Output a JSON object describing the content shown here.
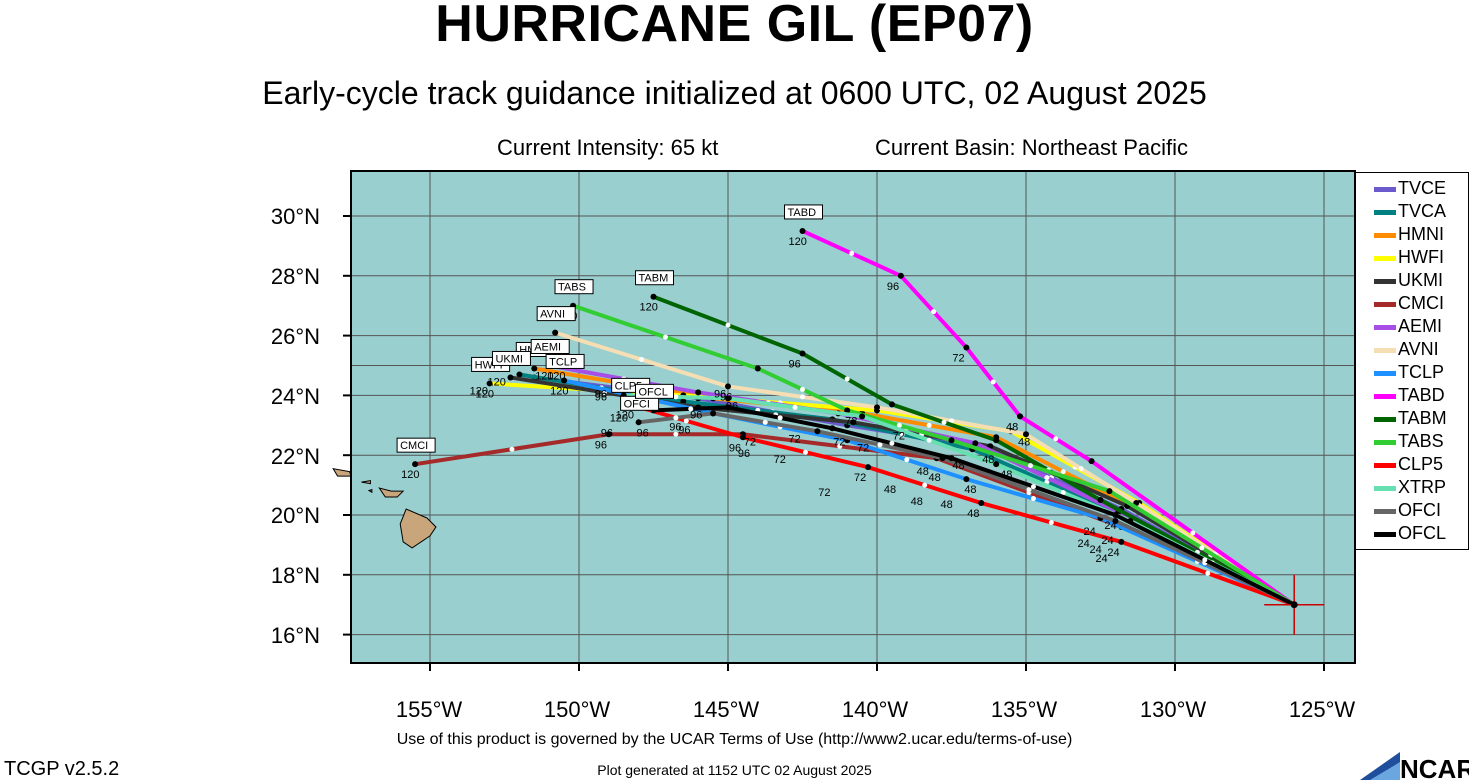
{
  "title": "HURRICANE GIL (EP07)",
  "subtitle": "Early-cycle track guidance initialized at 0600 UTC, 02 August 2025",
  "current_intensity": "Current Intensity: 65 kt",
  "current_basin": "Current Basin: Northeast Pacific",
  "footer": {
    "terms": "Use of this product is governed by the UCAR Terms of Use (http://www2.ucar.edu/terms-of-use)",
    "generated": "Plot generated at 1152 UTC   02 August 2025",
    "version": "TCGP v2.5.2",
    "logo_text": "NCAR"
  },
  "axes": {
    "lat_labels": [
      "30°N",
      "28°N",
      "26°N",
      "24°N",
      "22°N",
      "20°N",
      "18°N",
      "16°N"
    ],
    "lon_labels": [
      "155°W",
      "150°W",
      "145°W",
      "140°W",
      "135°W",
      "130°W",
      "125°W"
    ]
  },
  "colors": {
    "ocean": "#99cfcf",
    "land": "#c8a57a",
    "storm_marker": "#cc0000"
  },
  "storm_position": {
    "lat": 17.0,
    "lon": -126.0
  },
  "models": [
    {
      "id": "TVCE",
      "color": "#6a5acd",
      "points": [
        [
          -126,
          17.0
        ],
        [
          -131.8,
          20.2
        ],
        [
          -136.5,
          22.3
        ],
        [
          -141.0,
          23.0
        ],
        [
          -146.0,
          23.9
        ],
        [
          -151.5,
          24.6
        ]
      ],
      "end_label": "",
      "hour_labels": []
    },
    {
      "id": "TVCA",
      "color": "#008080",
      "points": [
        [
          -126,
          17.0
        ],
        [
          -131.8,
          20.0
        ],
        [
          -136.8,
          22.2
        ],
        [
          -141.5,
          23.2
        ],
        [
          -146.5,
          23.8
        ],
        [
          -152.0,
          24.7
        ]
      ],
      "end_label": "",
      "hour_labels": []
    },
    {
      "id": "HMNI",
      "color": "#ff8c00",
      "points": [
        [
          -126,
          17.0
        ],
        [
          -131.5,
          20.3
        ],
        [
          -136.0,
          22.6
        ],
        [
          -140.5,
          23.4
        ],
        [
          -145.5,
          23.9
        ],
        [
          -151.5,
          24.9
        ]
      ],
      "end_label": "HMNI",
      "hour_labels": []
    },
    {
      "id": "HWFI",
      "color": "#ffff00",
      "points": [
        [
          -126,
          17.0
        ],
        [
          -131.2,
          20.4
        ],
        [
          -135.5,
          22.8
        ],
        [
          -140.0,
          23.5
        ],
        [
          -146.5,
          24.0
        ],
        [
          -153.0,
          24.4
        ]
      ],
      "end_label": "HWFI",
      "hour_labels": [
        [
          "120",
          -153.0,
          24.4
        ]
      ]
    },
    {
      "id": "UKMI",
      "color": "#333333",
      "points": [
        [
          -126,
          17.0
        ],
        [
          -131.6,
          20.3
        ],
        [
          -136.2,
          22.3
        ],
        [
          -140.8,
          23.1
        ],
        [
          -146.0,
          23.6
        ],
        [
          -152.3,
          24.6
        ]
      ],
      "end_label": "UKMI",
      "hour_labels": []
    },
    {
      "id": "CMCI",
      "color": "#a52a2a",
      "points": [
        [
          -126,
          17.0
        ],
        [
          -131.8,
          19.6
        ],
        [
          -138.0,
          21.9
        ],
        [
          -144.5,
          22.7
        ],
        [
          -149.0,
          22.7
        ],
        [
          -155.5,
          21.7
        ]
      ],
      "end_label": "CMCI",
      "hour_labels": [
        [
          "120",
          -155.5,
          21.7
        ],
        [
          "96",
          -149.0,
          22.7
        ]
      ]
    },
    {
      "id": "AEMI",
      "color": "#a64ee6",
      "points": [
        [
          -126,
          17.0
        ],
        [
          -131.9,
          20.1
        ],
        [
          -136.7,
          22.4
        ],
        [
          -141.3,
          23.4
        ],
        [
          -146.0,
          24.1
        ],
        [
          -151.0,
          25.0
        ]
      ],
      "end_label": "AEMI",
      "hour_labels": [
        [
          "120",
          -151.0,
          25.0
        ]
      ]
    },
    {
      "id": "AVNI",
      "color": "#f5deb3",
      "points": [
        [
          -126,
          17.0
        ],
        [
          -131.3,
          20.4
        ],
        [
          -135.0,
          22.7
        ],
        [
          -140.0,
          23.6
        ],
        [
          -145.0,
          24.3
        ],
        [
          -150.8,
          26.1
        ]
      ],
      "end_label": "AVNI",
      "hour_labels": [
        [
          "120",
          -150.8,
          26.1
        ],
        [
          "96",
          -145.0,
          24.4
        ]
      ]
    },
    {
      "id": "TCLP",
      "color": "#1e90ff",
      "points": [
        [
          -126,
          17.0
        ],
        [
          -132.5,
          19.9
        ],
        [
          -137.0,
          21.2
        ],
        [
          -141.0,
          22.5
        ],
        [
          -145.5,
          23.4
        ],
        [
          -150.5,
          24.5
        ]
      ],
      "end_label": "TCLP",
      "hour_labels": [
        [
          "120",
          -150.5,
          24.5
        ],
        [
          "96",
          -149.0,
          24.4
        ]
      ]
    },
    {
      "id": "TABD",
      "color": "#ff00ff",
      "points": [
        [
          -126,
          17.0
        ],
        [
          -132.8,
          21.8
        ],
        [
          -135.2,
          23.3
        ],
        [
          -137.0,
          25.6
        ],
        [
          -139.2,
          28.0
        ],
        [
          -142.5,
          29.5
        ]
      ],
      "end_label": "TABD",
      "hour_labels": [
        [
          "120",
          -142.5,
          29.5
        ],
        [
          "96",
          -139.2,
          28.0
        ],
        [
          "72",
          -137.0,
          25.6
        ],
        [
          "48",
          -135.2,
          23.3
        ]
      ]
    },
    {
      "id": "TABM",
      "color": "#006400",
      "points": [
        [
          -126,
          17.0
        ],
        [
          -132.5,
          20.5
        ],
        [
          -136.0,
          22.5
        ],
        [
          -139.5,
          23.7
        ],
        [
          -142.5,
          25.4
        ],
        [
          -147.5,
          27.3
        ]
      ],
      "end_label": "TABM",
      "hour_labels": [
        [
          "120",
          -147.5,
          27.3
        ],
        [
          "96",
          -142.5,
          25.4
        ]
      ]
    },
    {
      "id": "TABS",
      "color": "#32cd32",
      "points": [
        [
          -126,
          17.0
        ],
        [
          -132.2,
          20.8
        ],
        [
          -137.5,
          22.5
        ],
        [
          -141.0,
          23.5
        ],
        [
          -144.0,
          24.9
        ],
        [
          -150.2,
          27.0
        ]
      ],
      "end_label": "TABS",
      "hour_labels": [
        [
          "120",
          -150.2,
          27.0
        ],
        [
          "96",
          -144.8,
          24.3
        ]
      ]
    },
    {
      "id": "CLP5",
      "color": "#ff0000",
      "points": [
        [
          -126,
          17.0
        ],
        [
          -131.8,
          19.1
        ],
        [
          -136.5,
          20.4
        ],
        [
          -140.3,
          21.6
        ],
        [
          -144.5,
          22.6
        ],
        [
          -148.3,
          23.7
        ]
      ],
      "end_label": "CLP5",
      "hour_labels": [
        [
          "120",
          -148.3,
          23.7
        ],
        [
          "96",
          -144.5,
          22.6
        ],
        [
          "72",
          -140.3,
          21.6
        ],
        [
          "48",
          -136.5,
          20.4
        ],
        [
          "24",
          -131.8,
          19.1
        ]
      ]
    },
    {
      "id": "XTRP",
      "color": "#66e0b0",
      "points": [
        [
          -126,
          17.0
        ],
        [
          -131.5,
          19.8
        ],
        [
          -136.0,
          21.7
        ],
        [
          -140.5,
          23.3
        ],
        [
          -145.0,
          23.9
        ],
        [
          -148.5,
          24.0
        ]
      ],
      "end_label": "",
      "hour_labels": []
    },
    {
      "id": "OFCI",
      "color": "#666666",
      "points": [
        [
          -126,
          17.0
        ],
        [
          -132.0,
          19.8
        ],
        [
          -137.8,
          21.9
        ],
        [
          -142.0,
          22.8
        ],
        [
          -145.5,
          23.4
        ],
        [
          -148.0,
          23.1
        ]
      ],
      "end_label": "OFCI",
      "hour_labels": [
        [
          "96",
          -146.5,
          23.3
        ]
      ]
    },
    {
      "id": "OFCL",
      "color": "#000000",
      "points": [
        [
          -126,
          17.0
        ],
        [
          -132.0,
          20.0
        ],
        [
          -137.5,
          21.9
        ],
        [
          -141.5,
          22.9
        ],
        [
          -145.0,
          23.6
        ],
        [
          -147.5,
          23.5
        ]
      ],
      "end_label": "OFCL",
      "hour_labels": [
        [
          "96",
          -145.8,
          23.7
        ]
      ]
    }
  ],
  "extra_hour_labels": [
    [
      "72",
      -143.0,
      22.2
    ],
    [
      "72",
      -142.5,
      22.9
    ],
    [
      "72",
      -141.0,
      22.8
    ],
    [
      "72",
      -140.6,
      23.5
    ],
    [
      "72",
      -139.0,
      23.0
    ],
    [
      "72",
      -144.0,
      22.8
    ],
    [
      "72",
      -140.2,
      22.6
    ],
    [
      "72",
      -141.5,
      21.1
    ],
    [
      "48",
      -134.8,
      22.8
    ],
    [
      "48",
      -137.0,
      22.0
    ],
    [
      "48",
      -138.2,
      21.8
    ],
    [
      "48",
      -139.3,
      21.2
    ],
    [
      "48",
      -137.8,
      21.6
    ],
    [
      "48",
      -138.4,
      20.8
    ],
    [
      "48",
      -136.6,
      21.2
    ],
    [
      "48",
      -135.4,
      21.7
    ],
    [
      "48",
      -136.0,
      22.2
    ],
    [
      "48",
      -137.4,
      20.7
    ],
    [
      "24",
      -132.6,
      19.8
    ],
    [
      "24",
      -132.8,
      19.4
    ],
    [
      "24",
      -132.0,
      19.5
    ],
    [
      "24",
      -132.4,
      19.2
    ],
    [
      "24",
      -132.2,
      18.9
    ],
    [
      "24",
      -131.9,
      20.0
    ],
    [
      "96",
      -144.6,
      24.0
    ],
    [
      "96",
      -146.2,
      23.2
    ],
    [
      "96",
      -147.6,
      23.1
    ],
    [
      "96",
      -148.8,
      23.1
    ],
    [
      "96",
      -144.2,
      22.4
    ],
    [
      "96",
      -149.0,
      24.3
    ],
    [
      "120",
      -148.5,
      23.6
    ],
    [
      "120",
      -150.6,
      25.0
    ],
    [
      "120",
      -152.6,
      24.8
    ],
    [
      "120",
      -153.2,
      24.5
    ]
  ],
  "islands": [
    [
      [
        -155.1,
        19.9
      ],
      [
        -155.8,
        20.2
      ],
      [
        -156.0,
        19.7
      ],
      [
        -155.9,
        19.1
      ],
      [
        -155.6,
        18.9
      ],
      [
        -155.0,
        19.3
      ],
      [
        -154.8,
        19.6
      ]
    ],
    [
      [
        -156.3,
        20.8
      ],
      [
        -156.7,
        20.9
      ],
      [
        -156.5,
        20.6
      ],
      [
        -156.1,
        20.6
      ],
      [
        -155.9,
        20.8
      ]
    ],
    [
      [
        -157.0,
        21.15
      ],
      [
        -157.3,
        21.1
      ],
      [
        -157.0,
        21.05
      ]
    ],
    [
      [
        -156.95,
        20.85
      ],
      [
        -157.05,
        20.82
      ],
      [
        -156.95,
        20.76
      ]
    ],
    [
      [
        -157.7,
        21.45
      ],
      [
        -158.25,
        21.55
      ],
      [
        -158.1,
        21.3
      ],
      [
        -157.65,
        21.3
      ]
    ]
  ]
}
